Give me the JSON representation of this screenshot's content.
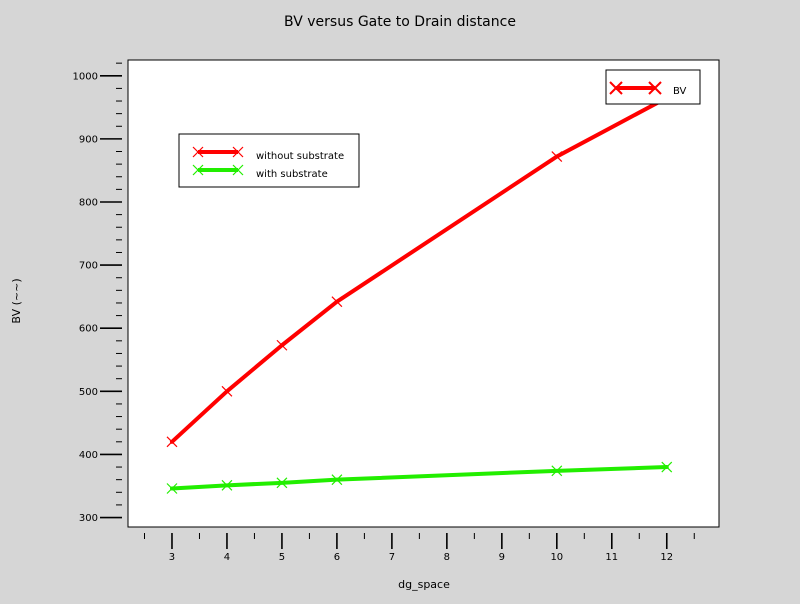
{
  "chart_data": {
    "type": "line",
    "title": "BV versus Gate to Drain distance",
    "xlabel": "dg_space",
    "ylabel": "BV (~~)",
    "xlim": [
      2.2,
      12.95
    ],
    "ylim": [
      285,
      1025
    ],
    "xticks": [
      3,
      4,
      5,
      6,
      7,
      8,
      9,
      10,
      11,
      12
    ],
    "yticks": [
      300,
      400,
      500,
      600,
      700,
      800,
      900,
      1000
    ],
    "x_minor_step": 0.5,
    "y_minor_step": 20,
    "grid": false,
    "series": [
      {
        "name": "without substrate",
        "color": "#ff0000",
        "marker": "x",
        "x": [
          3,
          4,
          5,
          6,
          10,
          12
        ],
        "y": [
          420,
          500,
          573,
          642,
          872,
          965
        ]
      },
      {
        "name": "with substrate",
        "color": "#22ee00",
        "marker": "x",
        "x": [
          3,
          4,
          5,
          6,
          10,
          12
        ],
        "y": [
          346,
          351,
          355,
          360,
          374,
          380
        ]
      }
    ],
    "legends": [
      {
        "position": "upper-left",
        "entries": [
          "without substrate",
          "with substrate"
        ]
      },
      {
        "position": "top-right",
        "entries": [
          "BV"
        ],
        "color": "#ff0000"
      }
    ]
  }
}
